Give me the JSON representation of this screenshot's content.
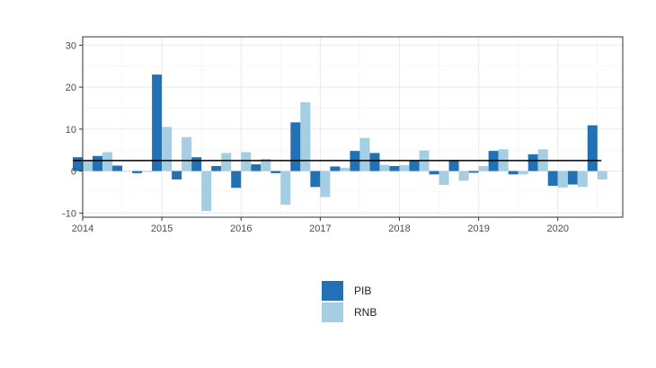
{
  "chart_data": {
    "type": "bar",
    "title": "",
    "xlabel": "",
    "ylabel": "",
    "ylim": [
      -11,
      32
    ],
    "xlim": [
      2014,
      2020.82
    ],
    "y_ticks": [
      -10,
      0,
      10,
      20,
      30
    ],
    "x_ticks": [
      2014,
      2015,
      2016,
      2017,
      2018,
      2019,
      2020
    ],
    "grid": true,
    "legend_position": "bottom",
    "reference_line": 2.5,
    "x": [
      2014.0,
      2014.25,
      2014.5,
      2014.75,
      2015.0,
      2015.25,
      2015.5,
      2015.75,
      2016.0,
      2016.25,
      2016.5,
      2016.75,
      2017.0,
      2017.25,
      2017.5,
      2017.75,
      2018.0,
      2018.25,
      2018.5,
      2018.75,
      2019.0,
      2019.25,
      2019.5,
      2019.75,
      2020.0,
      2020.25,
      2020.5
    ],
    "series": [
      {
        "name": "PIB",
        "color": "#2171b5",
        "values": [
          3.3,
          3.6,
          1.3,
          -0.5,
          23.0,
          -2.0,
          3.3,
          1.2,
          -4.0,
          1.6,
          -0.5,
          11.6,
          -3.8,
          1.1,
          4.8,
          4.3,
          1.2,
          2.5,
          -0.8,
          2.5,
          -0.4,
          4.8,
          -0.8,
          4.0,
          -3.5,
          -3.2,
          10.9
        ]
      },
      {
        "name": "RNB",
        "color": "#a6cee3",
        "values": [
          2.6,
          4.5,
          0.0,
          -0.2,
          10.5,
          8.1,
          -9.5,
          4.3,
          4.5,
          2.9,
          -8.0,
          16.4,
          -6.2,
          0.8,
          7.9,
          1.5,
          1.4,
          4.9,
          -3.3,
          -2.3,
          1.2,
          5.2,
          -0.8,
          5.2,
          -3.9,
          -3.8,
          -2.0
        ]
      }
    ]
  }
}
